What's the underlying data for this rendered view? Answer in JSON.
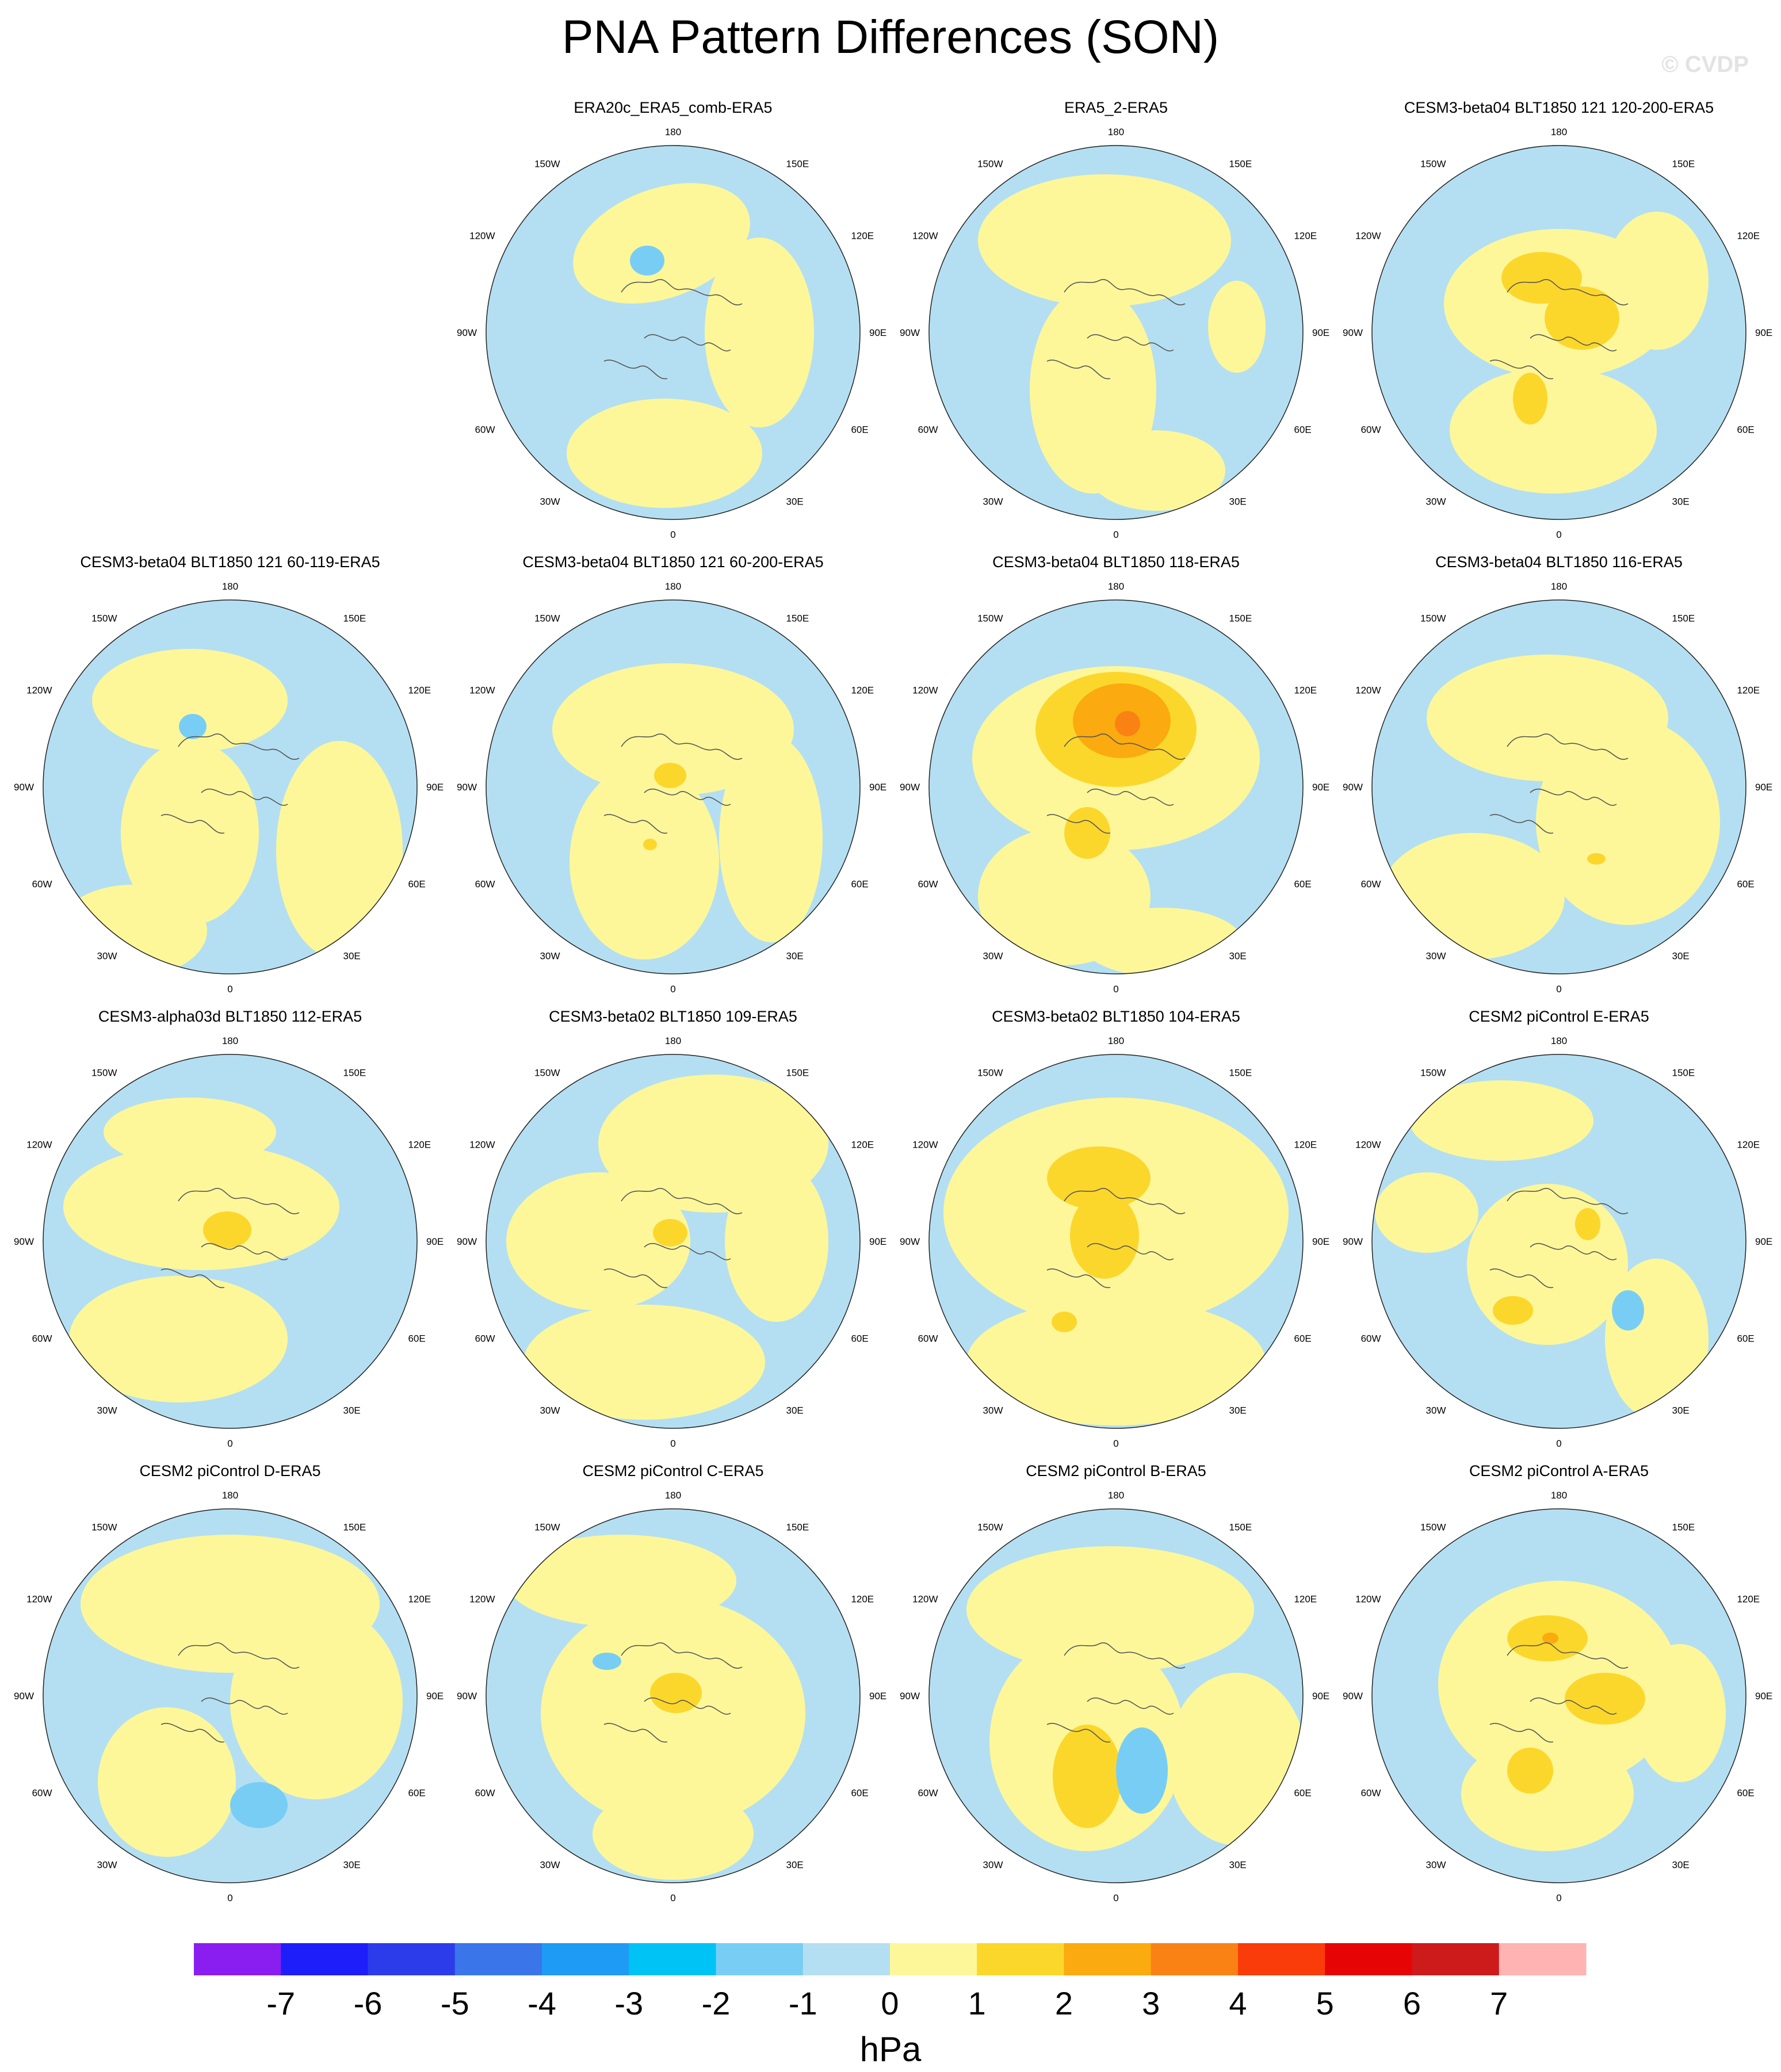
{
  "title": "PNA Pattern Differences (SON)",
  "watermark": "© CVDP",
  "chart_data": {
    "type": "polar-contour-map",
    "grid": true,
    "lon_labels": [
      "180",
      "150E",
      "120E",
      "90E",
      "60E",
      "30E",
      "0",
      "30W",
      "60W",
      "90W",
      "120W",
      "150W"
    ],
    "colorbar": {
      "unit": "hPa",
      "ticks": [
        "-7",
        "-6",
        "-5",
        "-4",
        "-3",
        "-2",
        "-1",
        "0",
        "1",
        "2",
        "3",
        "4",
        "5",
        "6",
        "7"
      ],
      "colors": [
        "#8a1ef0",
        "#1e1efa",
        "#2c3ceb",
        "#3a76ea",
        "#1e9bf5",
        "#00c3f5",
        "#78cdf5",
        "#b4dff2",
        "#fdf79a",
        "#fcd72b",
        "#fbaa10",
        "#fa8214",
        "#fa3c0a",
        "#e70404",
        "#cd1a1a",
        "#ffb3b3"
      ]
    },
    "panels": [
      {
        "title": "ERA20c_ERA5_comb-ERA5",
        "max": "0-1",
        "min": "-2--1"
      },
      {
        "title": "ERA5_2-ERA5",
        "max": "0-1",
        "min": "-1-0"
      },
      {
        "title": "CESM3-beta04 BLT1850 121 120-200-ERA5",
        "max": "1-2",
        "min": "-1-0"
      },
      {
        "title": "CESM3-beta04 BLT1850 121 60-119-ERA5",
        "max": "0-1",
        "min": "-2--1"
      },
      {
        "title": "CESM3-beta04 BLT1850 121 60-200-ERA5",
        "max": "1-2",
        "min": "-1-0"
      },
      {
        "title": "CESM3-beta04 BLT1850 118-ERA5",
        "max": "3-4",
        "min": "-1-0"
      },
      {
        "title": "CESM3-beta04 BLT1850 116-ERA5",
        "max": "1-2",
        "min": "-1-0"
      },
      {
        "title": "CESM3-alpha03d BLT1850 112-ERA5",
        "max": "1-2",
        "min": "-1-0"
      },
      {
        "title": "CESM3-beta02 BLT1850 109-ERA5",
        "max": "1-2",
        "min": "-1-0"
      },
      {
        "title": "CESM3-beta02 BLT1850 104-ERA5",
        "max": "1-2",
        "min": "-1-0"
      },
      {
        "title": "CESM2 piControl E-ERA5",
        "max": "1-2",
        "min": "-2--1"
      },
      {
        "title": "CESM2 piControl D-ERA5",
        "max": "0-1",
        "min": "-2--1"
      },
      {
        "title": "CESM2 piControl C-ERA5",
        "max": "1-2",
        "min": "-2--1"
      },
      {
        "title": "CESM2 piControl B-ERA5",
        "max": "1-2",
        "min": "-2--1"
      },
      {
        "title": "CESM2 piControl A-ERA5",
        "max": "2-3",
        "min": "-1-0"
      }
    ]
  }
}
